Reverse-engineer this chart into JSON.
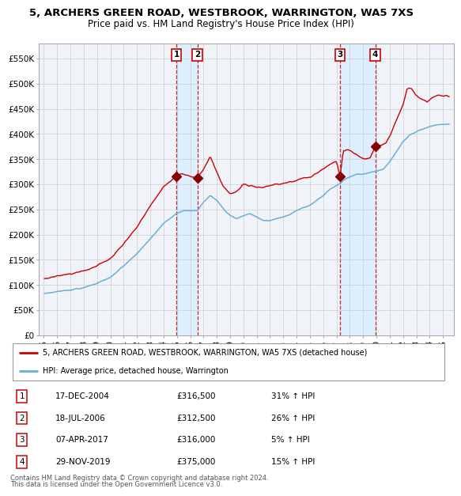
{
  "title": "5, ARCHERS GREEN ROAD, WESTBROOK, WARRINGTON, WA5 7XS",
  "subtitle": "Price paid vs. HM Land Registry's House Price Index (HPI)",
  "legend_line1": "5, ARCHERS GREEN ROAD, WESTBROOK, WARRINGTON, WA5 7XS (detached house)",
  "legend_line2": "HPI: Average price, detached house, Warrington",
  "footer1": "Contains HM Land Registry data © Crown copyright and database right 2024.",
  "footer2": "This data is licensed under the Open Government Licence v3.0.",
  "transactions": [
    {
      "num": 1,
      "date": "17-DEC-2004",
      "price": 316500,
      "pct": "31%",
      "dir": "↑"
    },
    {
      "num": 2,
      "date": "18-JUL-2006",
      "price": 312500,
      "pct": "26%",
      "dir": "↑"
    },
    {
      "num": 3,
      "date": "07-APR-2017",
      "price": 316000,
      "pct": "5%",
      "dir": "↑"
    },
    {
      "num": 4,
      "date": "29-NOV-2019",
      "price": 375000,
      "pct": "15%",
      "dir": "↑"
    }
  ],
  "transaction_dates_decimal": [
    2004.96,
    2006.54,
    2017.27,
    2019.91
  ],
  "hpi_color": "#6aaed6",
  "price_color": "#cc0000",
  "marker_color": "#880000",
  "vline_color": "#cc0000",
  "shade_color": "#ddeeff",
  "background_color": "#f0f4f8",
  "grid_color": "#cccccc",
  "ylim": [
    0,
    580000
  ],
  "xlim_start": 1994.6,
  "xlim_end": 2025.8
}
